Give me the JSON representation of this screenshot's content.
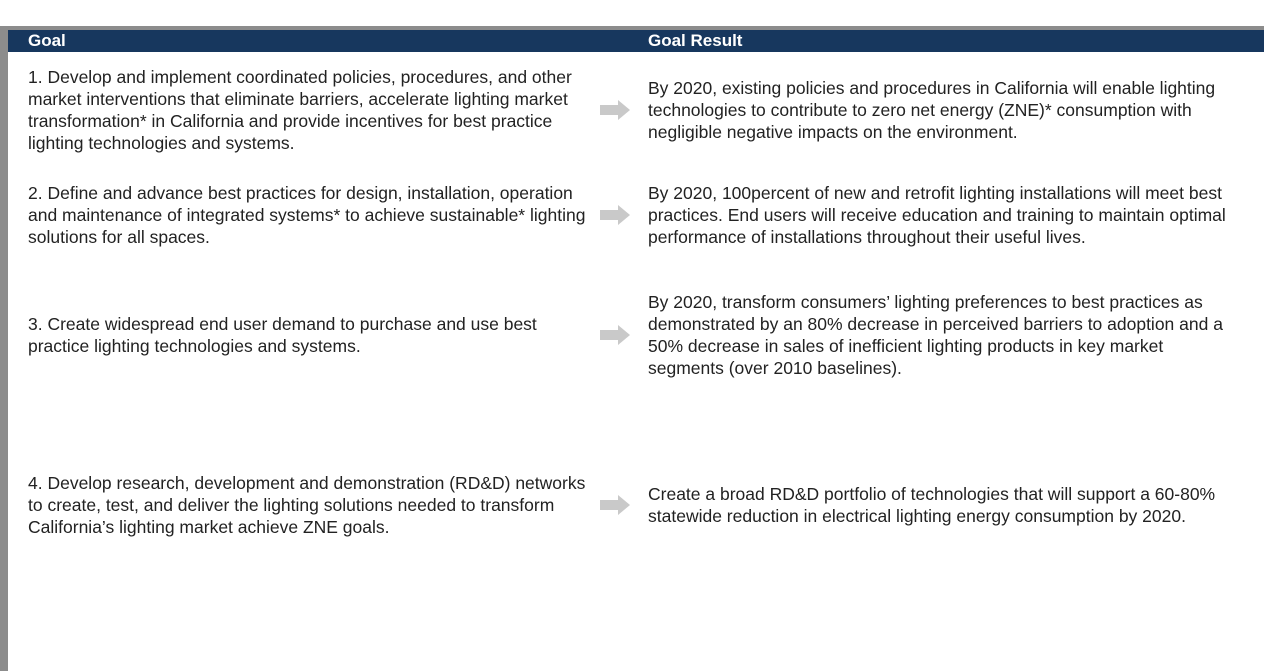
{
  "header": {
    "goal": "Goal",
    "result": "Goal Result"
  },
  "rows": [
    {
      "goal": "1. Develop and implement coordinated policies, procedures, and other market interventions that eliminate barriers, accelerate lighting market transformation* in California and provide incentives for best practice lighting technologies and systems.",
      "result": "By 2020, existing policies and procedures in California will enable lighting technologies to contribute to zero net energy (ZNE)* consumption with negligible negative impacts on the environment."
    },
    {
      "goal": "2. Define and advance best practices for design, installation, operation and maintenance of integrated systems* to achieve sustainable* lighting solutions for all spaces.",
      "result": "By 2020, 100percent of new and retrofit lighting installations will meet best practices. End users will receive education and training to maintain optimal performance of installations throughout their useful lives."
    },
    {
      "goal": "3. Create widespread end user demand to purchase and use best practice lighting technologies and systems.",
      "result": "By 2020, transform consumers’ lighting preferences to best practices as demonstrated by an 80% decrease in perceived barriers to adoption and a 50% decrease in sales of inefficient lighting products in key market segments (over 2010 baselines)."
    },
    {
      "goal": "4. Develop research, development and demonstration (RD&D) networks to create, test, and deliver the lighting solutions needed to transform California’s lighting market achieve ZNE goals.",
      "result": "Create a broad RD&D portfolio of technologies that will support a 60-80% statewide reduction in electrical lighting energy consumption by 2020."
    }
  ]
}
